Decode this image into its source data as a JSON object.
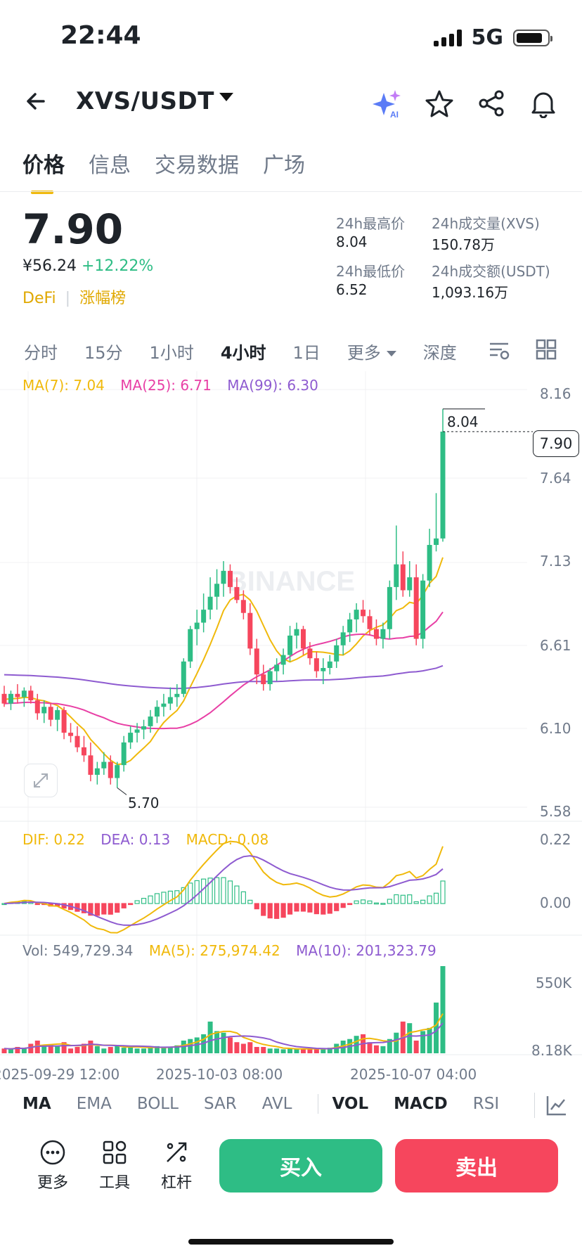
{
  "status": {
    "time": "22:44",
    "network": "5G"
  },
  "header": {
    "pair": "XVS/USDT"
  },
  "tabs": [
    {
      "label": "价格"
    },
    {
      "label": "信息"
    },
    {
      "label": "交易数据"
    },
    {
      "label": "广场"
    }
  ],
  "price": {
    "last": "7.90",
    "cny": "¥56.24",
    "change": "+12.22%",
    "tag1": "DeFi",
    "tag2": "涨幅榜"
  },
  "stats": {
    "high_label": "24h最高价",
    "high": "8.04",
    "low_label": "24h最低价",
    "low": "6.52",
    "vol_label": "24h成交量(XVS)",
    "vol": "150.78万",
    "amt_label": "24h成交额(USDT)",
    "amt": "1,093.16万"
  },
  "intervals": [
    "分时",
    "15分",
    "1小时",
    "4小时",
    "1日",
    "更多",
    "深度"
  ],
  "legend": {
    "ma7": "MA(7): 7.04",
    "ma25": "MA(25): 6.71",
    "ma99": "MA(99): 6.30",
    "dif": "DIF: 0.22",
    "dea": "DEA: 0.13",
    "macd": "MACD: 0.08",
    "vol": "Vol: 549,729.34",
    "vma5": "MA(5): 275,974.42",
    "vma10": "MA(10): 201,323.79"
  },
  "watermark": "BINANCE",
  "chart_data": {
    "type": "candlestick",
    "price_axis_ticks": [
      "8.16",
      "7.64",
      "7.13",
      "6.61",
      "6.10",
      "5.58"
    ],
    "macd_axis_ticks": [
      "0.22",
      "0.00"
    ],
    "volume_axis_ticks": [
      "550K",
      "8.18K"
    ],
    "x_tick_labels": [
      "2025-09-29 12:00",
      "2025-10-03 08:00",
      "2025-10-07 04:00"
    ],
    "annotations": {
      "high": "8.04",
      "low": "5.70",
      "current": "7.90"
    },
    "colors": {
      "up": "#2ebd85",
      "down": "#f6465d",
      "ma7": "#f0b90b",
      "ma25": "#e83fa5",
      "ma99": "#8e5bd0"
    },
    "candles_ohlc": [
      [
        6.28,
        6.33,
        6.2,
        6.22
      ],
      [
        6.22,
        6.3,
        6.18,
        6.28
      ],
      [
        6.28,
        6.34,
        6.22,
        6.26
      ],
      [
        6.26,
        6.32,
        6.2,
        6.3
      ],
      [
        6.3,
        6.33,
        6.22,
        6.24
      ],
      [
        6.24,
        6.28,
        6.12,
        6.16
      ],
      [
        6.16,
        6.24,
        6.1,
        6.2
      ],
      [
        6.2,
        6.22,
        6.08,
        6.12
      ],
      [
        6.12,
        6.2,
        6.05,
        6.18
      ],
      [
        6.18,
        6.2,
        6.0,
        6.04
      ],
      [
        6.04,
        6.1,
        5.98,
        6.02
      ],
      [
        6.02,
        6.08,
        5.92,
        5.95
      ],
      [
        5.95,
        6.02,
        5.86,
        5.9
      ],
      [
        5.9,
        5.98,
        5.74,
        5.78
      ],
      [
        5.78,
        5.86,
        5.72,
        5.82
      ],
      [
        5.82,
        5.92,
        5.78,
        5.86
      ],
      [
        5.86,
        5.9,
        5.72,
        5.76
      ],
      [
        5.76,
        5.86,
        5.7,
        5.84
      ],
      [
        5.84,
        6.02,
        5.8,
        5.98
      ],
      [
        5.98,
        6.08,
        5.94,
        6.04
      ],
      [
        6.04,
        6.1,
        5.98,
        6.06
      ],
      [
        6.06,
        6.12,
        6.0,
        6.08
      ],
      [
        6.08,
        6.18,
        6.04,
        6.14
      ],
      [
        6.14,
        6.24,
        6.1,
        6.2
      ],
      [
        6.2,
        6.28,
        6.14,
        6.22
      ],
      [
        6.22,
        6.32,
        6.18,
        6.26
      ],
      [
        6.26,
        6.34,
        6.2,
        6.28
      ],
      [
        6.28,
        6.5,
        6.26,
        6.48
      ],
      [
        6.48,
        6.7,
        6.44,
        6.68
      ],
      [
        6.68,
        6.8,
        6.58,
        6.72
      ],
      [
        6.72,
        6.9,
        6.66,
        6.8
      ],
      [
        6.8,
        7.0,
        6.74,
        6.88
      ],
      [
        6.88,
        7.05,
        6.8,
        6.96
      ],
      [
        6.96,
        7.1,
        6.88,
        7.04
      ],
      [
        7.04,
        7.08,
        6.9,
        6.94
      ],
      [
        6.94,
        7.0,
        6.84,
        6.86
      ],
      [
        6.86,
        6.92,
        6.74,
        6.78
      ],
      [
        6.78,
        6.84,
        6.52,
        6.56
      ],
      [
        6.56,
        6.62,
        6.34,
        6.4
      ],
      [
        6.4,
        6.46,
        6.3,
        6.34
      ],
      [
        6.34,
        6.44,
        6.3,
        6.42
      ],
      [
        6.42,
        6.5,
        6.36,
        6.46
      ],
      [
        6.46,
        6.56,
        6.4,
        6.52
      ],
      [
        6.52,
        6.7,
        6.48,
        6.64
      ],
      [
        6.64,
        6.72,
        6.56,
        6.68
      ],
      [
        6.68,
        6.7,
        6.52,
        6.56
      ],
      [
        6.56,
        6.6,
        6.46,
        6.5
      ],
      [
        6.5,
        6.54,
        6.38,
        6.42
      ],
      [
        6.42,
        6.5,
        6.34,
        6.44
      ],
      [
        6.44,
        6.52,
        6.4,
        6.48
      ],
      [
        6.48,
        6.62,
        6.44,
        6.58
      ],
      [
        6.58,
        6.7,
        6.52,
        6.66
      ],
      [
        6.66,
        6.78,
        6.6,
        6.74
      ],
      [
        6.74,
        6.84,
        6.66,
        6.8
      ],
      [
        6.8,
        6.86,
        6.72,
        6.76
      ],
      [
        6.76,
        6.8,
        6.64,
        6.68
      ],
      [
        6.68,
        6.74,
        6.58,
        6.62
      ],
      [
        6.62,
        6.72,
        6.56,
        6.68
      ],
      [
        6.68,
        6.98,
        6.62,
        6.94
      ],
      [
        6.94,
        7.32,
        6.86,
        7.08
      ],
      [
        7.08,
        7.16,
        6.88,
        6.92
      ],
      [
        6.92,
        7.1,
        6.88,
        7.0
      ],
      [
        7.0,
        7.08,
        6.58,
        6.62
      ],
      [
        6.62,
        7.02,
        6.56,
        6.98
      ],
      [
        6.98,
        7.3,
        6.94,
        7.2
      ],
      [
        7.2,
        7.52,
        7.16,
        7.24
      ],
      [
        7.24,
        8.04,
        7.22,
        7.9
      ]
    ],
    "volumes_k": [
      30,
      25,
      40,
      30,
      60,
      80,
      50,
      55,
      45,
      70,
      30,
      40,
      60,
      80,
      45,
      30,
      40,
      50,
      35,
      45,
      30,
      30,
      40,
      45,
      35,
      40,
      50,
      80,
      90,
      100,
      120,
      200,
      140,
      130,
      100,
      70,
      60,
      70,
      40,
      40,
      30,
      30,
      25,
      30,
      25,
      30,
      30,
      30,
      25,
      35,
      60,
      80,
      90,
      110,
      120,
      70,
      50,
      45,
      90,
      130,
      200,
      190,
      80,
      140,
      160,
      320,
      550
    ]
  },
  "indicator_tabs": [
    "MA",
    "EMA",
    "BOLL",
    "SAR",
    "AVL",
    "VOL",
    "MACD",
    "RSI"
  ],
  "bottom_bar": {
    "more": "更多",
    "tools": "工具",
    "leverage": "杠杆",
    "buy": "买入",
    "sell": "卖出"
  }
}
